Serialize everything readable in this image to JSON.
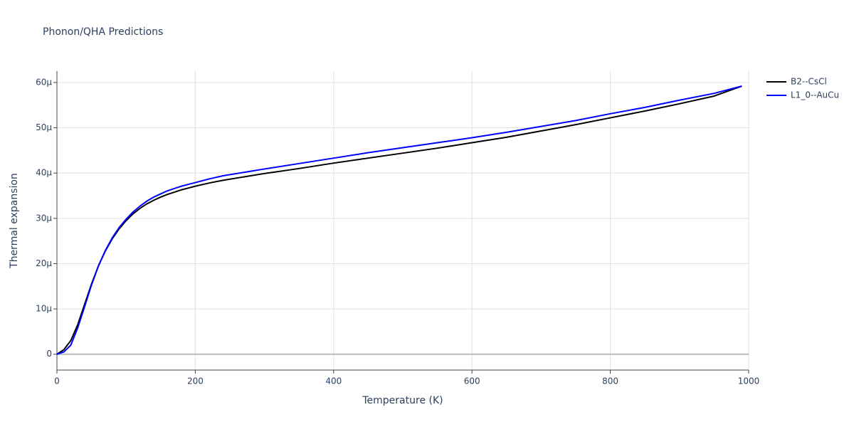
{
  "chart_data": {
    "type": "line",
    "title": "Phonon/QHA Predictions",
    "x_label": "Temperature (K)",
    "y_label": "Thermal expansion",
    "x": [
      0,
      10,
      20,
      30,
      40,
      50,
      60,
      70,
      80,
      90,
      100,
      110,
      120,
      130,
      140,
      150,
      160,
      170,
      180,
      190,
      200,
      220,
      240,
      260,
      280,
      300,
      350,
      400,
      450,
      500,
      550,
      600,
      650,
      700,
      750,
      800,
      850,
      900,
      950,
      990
    ],
    "series": [
      {
        "name": "B2--CsCl",
        "color": "#000000",
        "values": [
          0,
          1e-06,
          3e-06,
          6.5e-06,
          1.1e-05,
          1.55e-05,
          1.95e-05,
          2.28e-05,
          2.55e-05,
          2.77e-05,
          2.95e-05,
          3.1e-05,
          3.22e-05,
          3.32e-05,
          3.4e-05,
          3.47e-05,
          3.53e-05,
          3.58e-05,
          3.63e-05,
          3.67e-05,
          3.71e-05,
          3.78e-05,
          3.84e-05,
          3.89e-05,
          3.94e-05,
          3.99e-05,
          4.1e-05,
          4.22e-05,
          4.33e-05,
          4.44e-05,
          4.55e-05,
          4.67e-05,
          4.79e-05,
          4.93e-05,
          5.07e-05,
          5.22e-05,
          5.37e-05,
          5.53e-05,
          5.7e-05,
          5.92e-05
        ]
      },
      {
        "name": "L1_0--AuCu",
        "color": "#0000ff",
        "values": [
          0,
          5e-07,
          2e-06,
          5.8e-06,
          1.05e-05,
          1.53e-05,
          1.95e-05,
          2.29e-05,
          2.57e-05,
          2.8e-05,
          2.98e-05,
          3.14e-05,
          3.27e-05,
          3.38e-05,
          3.47e-05,
          3.54e-05,
          3.61e-05,
          3.66e-05,
          3.71e-05,
          3.75e-05,
          3.79e-05,
          3.87e-05,
          3.94e-05,
          3.99e-05,
          4.04e-05,
          4.09e-05,
          4.21e-05,
          4.33e-05,
          4.45e-05,
          4.56e-05,
          4.67e-05,
          4.78e-05,
          4.9e-05,
          5.03e-05,
          5.16e-05,
          5.31e-05,
          5.45e-05,
          5.61e-05,
          5.76e-05,
          5.92e-05
        ]
      }
    ],
    "xlim": [
      0,
      1000
    ],
    "xticks": [
      0,
      200,
      400,
      600,
      800,
      1000
    ],
    "ylim": [
      -3.5e-06,
      6.25e-05
    ],
    "yticks": [
      0,
      {
        "value": 1e-05,
        "label": "10µ"
      },
      {
        "value": 2e-05,
        "label": "20µ"
      },
      {
        "value": 3e-05,
        "label": "30µ"
      },
      {
        "value": 4e-05,
        "label": "40µ"
      },
      {
        "value": 5e-05,
        "label": "50µ"
      },
      {
        "value": 6e-05,
        "label": "60µ"
      }
    ],
    "grid": true,
    "legend": "top-right"
  }
}
